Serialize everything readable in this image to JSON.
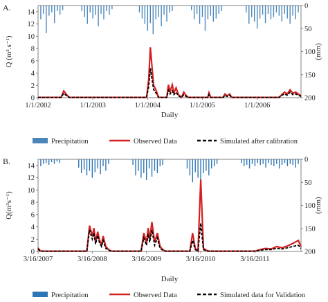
{
  "chart_data": [
    {
      "type": "line",
      "panel_label": "A.",
      "xlabel": "Daily",
      "ylabel": "Q (m³.s⁻¹)",
      "y2label": "(mm)",
      "ylim": [
        0,
        15
      ],
      "y2lim": [
        200,
        0
      ],
      "y_ticks": [
        "0",
        "2",
        "4",
        "6",
        "8",
        "10",
        "12",
        "14"
      ],
      "y2_ticks": [
        "0",
        "50",
        "100",
        "150",
        "200"
      ],
      "x_ticks": [
        "1/1/2002",
        "1/1/2003",
        "1/1/2004",
        "1/1/2005",
        "1/1/2006"
      ],
      "xlim_years": [
        2002.0,
        2006.8
      ],
      "legend": [
        "Precipitation",
        "Observed Data",
        "Simulated after calibration"
      ],
      "colors": {
        "precip": "#4a86b9",
        "observed": "#d42020",
        "simulated": "#000000"
      },
      "series": [
        {
          "name": "Observed Data",
          "x": [
            2002.0,
            2002.42,
            2002.47,
            2002.52,
            2002.57,
            2003.98,
            2004.02,
            2004.05,
            2004.08,
            2004.11,
            2004.15,
            2004.2,
            2004.35,
            2004.38,
            2004.41,
            2004.45,
            2004.48,
            2004.52,
            2004.56,
            2004.62,
            2004.66,
            2004.7,
            2004.74,
            2005.1,
            2005.12,
            2005.15,
            2005.38,
            2005.41,
            2005.45,
            2005.5,
            2005.53,
            2006.4,
            2006.45,
            2006.5,
            2006.55,
            2006.6,
            2006.65,
            2006.7,
            2006.8
          ],
          "values": [
            0.05,
            0.05,
            1.1,
            0.5,
            0.05,
            0.05,
            3.0,
            8.2,
            5.0,
            2.0,
            1.3,
            0.05,
            0.05,
            2.1,
            1.0,
            2.1,
            0.8,
            1.6,
            0.5,
            0.05,
            0.9,
            0.4,
            0.05,
            0.05,
            0.8,
            0.05,
            0.05,
            0.6,
            0.3,
            0.6,
            0.05,
            0.05,
            0.5,
            0.9,
            0.6,
            1.3,
            0.7,
            0.9,
            0.3
          ]
        },
        {
          "name": "Simulated after calibration",
          "x": [
            2002.0,
            2002.42,
            2002.47,
            2002.52,
            2002.57,
            2003.98,
            2004.02,
            2004.05,
            2004.08,
            2004.11,
            2004.15,
            2004.2,
            2004.35,
            2004.38,
            2004.41,
            2004.45,
            2004.48,
            2004.52,
            2004.56,
            2004.62,
            2004.66,
            2004.7,
            2004.74,
            2005.1,
            2005.12,
            2005.15,
            2005.38,
            2005.41,
            2005.45,
            2005.5,
            2005.53,
            2006.4,
            2006.45,
            2006.5,
            2006.55,
            2006.6,
            2006.65,
            2006.7,
            2006.8
          ],
          "values": [
            0.05,
            0.05,
            0.7,
            0.3,
            0.05,
            0.05,
            1.8,
            4.8,
            3.0,
            1.3,
            0.8,
            0.05,
            0.05,
            1.2,
            0.6,
            1.1,
            0.5,
            0.9,
            0.3,
            0.05,
            0.5,
            0.2,
            0.05,
            0.05,
            0.5,
            0.05,
            0.05,
            0.4,
            0.2,
            0.4,
            0.05,
            0.05,
            0.4,
            0.6,
            0.4,
            0.9,
            0.5,
            0.6,
            0.2
          ]
        },
        {
          "name": "Precipitation",
          "x": [
            2002.05,
            2002.1,
            2002.15,
            2002.2,
            2002.25,
            2002.3,
            2002.35,
            2002.4,
            2002.45,
            2002.8,
            2002.85,
            2002.9,
            2002.95,
            2003.0,
            2003.05,
            2003.1,
            2003.15,
            2003.2,
            2003.25,
            2003.3,
            2003.35,
            2003.85,
            2003.9,
            2003.95,
            2004.0,
            2004.05,
            2004.1,
            2004.15,
            2004.2,
            2004.25,
            2004.3,
            2004.35,
            2004.4,
            2004.45,
            2004.8,
            2004.85,
            2004.9,
            2004.95,
            2005.0,
            2005.05,
            2005.1,
            2005.15,
            2005.2,
            2005.25,
            2005.3,
            2005.35,
            2005.8,
            2005.85,
            2005.9,
            2005.95,
            2006.0,
            2006.05,
            2006.1,
            2006.15,
            2006.2,
            2006.25,
            2006.3,
            2006.35,
            2006.4,
            2006.45,
            2006.5,
            2006.55,
            2006.6,
            2006.65,
            2006.7,
            2006.75
          ],
          "values": [
            30,
            18,
            60,
            22,
            15,
            38,
            12,
            20,
            10,
            12,
            25,
            40,
            15,
            28,
            20,
            45,
            18,
            30,
            12,
            20,
            8,
            15,
            28,
            40,
            55,
            38,
            62,
            30,
            25,
            45,
            20,
            35,
            15,
            12,
            10,
            30,
            18,
            40,
            25,
            55,
            30,
            22,
            35,
            28,
            18,
            12,
            15,
            40,
            25,
            35,
            50,
            28,
            20,
            38,
            18,
            30,
            25,
            15,
            22,
            35,
            18,
            28,
            40,
            22,
            30,
            15
          ]
        }
      ]
    },
    {
      "type": "line",
      "panel_label": "B.",
      "xlabel": "Daily",
      "ylabel": "Q(m³s⁻¹)",
      "y2label": "(mm)",
      "ylim": [
        0,
        15
      ],
      "y2lim": [
        200,
        0
      ],
      "y_ticks": [
        "0",
        "2",
        "4",
        "6",
        "8",
        "10",
        "12",
        "14"
      ],
      "y2_ticks": [
        "0",
        "50",
        "100",
        "150",
        "200"
      ],
      "x_ticks": [
        "3/16/2007",
        "3/16/2008",
        "3/16/2009",
        "3/16/2010",
        "3/16/2011"
      ],
      "xlim_years": [
        2007.0,
        2011.85
      ],
      "legend": [
        "Precipitation",
        "Observed Data",
        "Simulated data for Validation"
      ],
      "colors": {
        "precip": "#2e75b6",
        "observed": "#d42020",
        "simulated": "#000000"
      },
      "series": [
        {
          "name": "Observed Data",
          "x": [
            2007.0,
            2007.03,
            2007.06,
            2007.1,
            2007.9,
            2007.95,
            2008.0,
            2008.03,
            2008.06,
            2008.1,
            2008.13,
            2008.17,
            2008.2,
            2008.25,
            2008.3,
            2008.35,
            2008.9,
            2008.95,
            2009.0,
            2009.03,
            2009.06,
            2009.1,
            2009.15,
            2009.2,
            2009.25,
            2009.3,
            2009.35,
            2009.8,
            2009.85,
            2009.9,
            2009.95,
            2010.0,
            2010.05,
            2010.1,
            2010.15,
            2011.0,
            2011.1,
            2011.2,
            2011.3,
            2011.4,
            2011.5,
            2011.6,
            2011.7,
            2011.8,
            2011.85
          ],
          "values": [
            0.6,
            0.2,
            0.05,
            0.05,
            0.05,
            4.2,
            2.5,
            3.8,
            1.5,
            3.2,
            2.0,
            1.0,
            2.5,
            0.8,
            0.3,
            0.05,
            0.05,
            3.0,
            1.5,
            3.8,
            2.0,
            4.8,
            1.5,
            3.0,
            0.8,
            0.3,
            0.05,
            0.05,
            3.0,
            0.5,
            0.05,
            11.7,
            0.5,
            0.2,
            0.05,
            0.05,
            0.3,
            0.5,
            0.4,
            0.8,
            0.6,
            0.9,
            1.3,
            1.8,
            0.8
          ]
        },
        {
          "name": "Simulated data for Validation",
          "x": [
            2007.0,
            2007.03,
            2007.06,
            2007.1,
            2007.9,
            2007.95,
            2008.0,
            2008.03,
            2008.06,
            2008.1,
            2008.13,
            2008.17,
            2008.2,
            2008.25,
            2008.3,
            2008.35,
            2008.9,
            2008.95,
            2009.0,
            2009.03,
            2009.06,
            2009.1,
            2009.15,
            2009.2,
            2009.25,
            2009.3,
            2009.35,
            2009.8,
            2009.85,
            2009.9,
            2009.95,
            2010.0,
            2010.05,
            2010.1,
            2010.15,
            2011.0,
            2011.1,
            2011.2,
            2011.3,
            2011.4,
            2011.5,
            2011.6,
            2011.7,
            2011.8,
            2011.85
          ],
          "values": [
            0.4,
            0.1,
            0.05,
            0.05,
            0.05,
            3.5,
            2.0,
            3.0,
            1.2,
            2.6,
            1.5,
            0.8,
            1.8,
            0.5,
            0.2,
            0.05,
            0.05,
            2.2,
            1.0,
            2.8,
            1.5,
            3.5,
            1.0,
            2.2,
            0.5,
            0.2,
            0.05,
            0.05,
            1.8,
            0.3,
            0.05,
            4.6,
            0.3,
            0.1,
            0.05,
            0.05,
            0.2,
            0.3,
            0.3,
            0.5,
            0.4,
            0.6,
            0.8,
            1.0,
            0.5
          ]
        },
        {
          "name": "Precipitation",
          "x": [
            2007.05,
            2007.1,
            2007.15,
            2007.2,
            2007.25,
            2007.3,
            2007.35,
            2007.4,
            2007.75,
            2007.8,
            2007.85,
            2007.9,
            2007.95,
            2008.0,
            2008.05,
            2008.1,
            2008.15,
            2008.2,
            2008.25,
            2008.3,
            2008.75,
            2008.8,
            2008.85,
            2008.9,
            2008.95,
            2009.0,
            2009.05,
            2009.1,
            2009.15,
            2009.2,
            2009.25,
            2009.3,
            2009.75,
            2009.8,
            2009.85,
            2009.9,
            2009.95,
            2010.0,
            2010.05,
            2010.1,
            2010.15,
            2010.2,
            2010.25,
            2010.3,
            2010.75,
            2010.8,
            2010.85,
            2010.9,
            2010.95,
            2011.0,
            2011.05,
            2011.1,
            2011.15,
            2011.2,
            2011.25,
            2011.3,
            2011.35,
            2011.4,
            2011.45,
            2011.5,
            2011.55,
            2011.6,
            2011.65,
            2011.7,
            2011.75,
            2011.8
          ],
          "values": [
            15,
            10,
            8,
            12,
            6,
            10,
            5,
            8,
            18,
            30,
            22,
            35,
            25,
            40,
            28,
            20,
            32,
            15,
            25,
            10,
            12,
            35,
            25,
            40,
            30,
            45,
            20,
            38,
            25,
            30,
            15,
            12,
            20,
            35,
            50,
            28,
            40,
            55,
            30,
            25,
            35,
            20,
            15,
            10,
            8,
            15,
            12,
            20,
            10,
            15,
            8,
            12,
            10,
            18,
            8,
            12,
            15,
            10,
            20,
            12,
            8,
            15,
            10,
            12,
            18,
            10
          ]
        }
      ]
    }
  ]
}
